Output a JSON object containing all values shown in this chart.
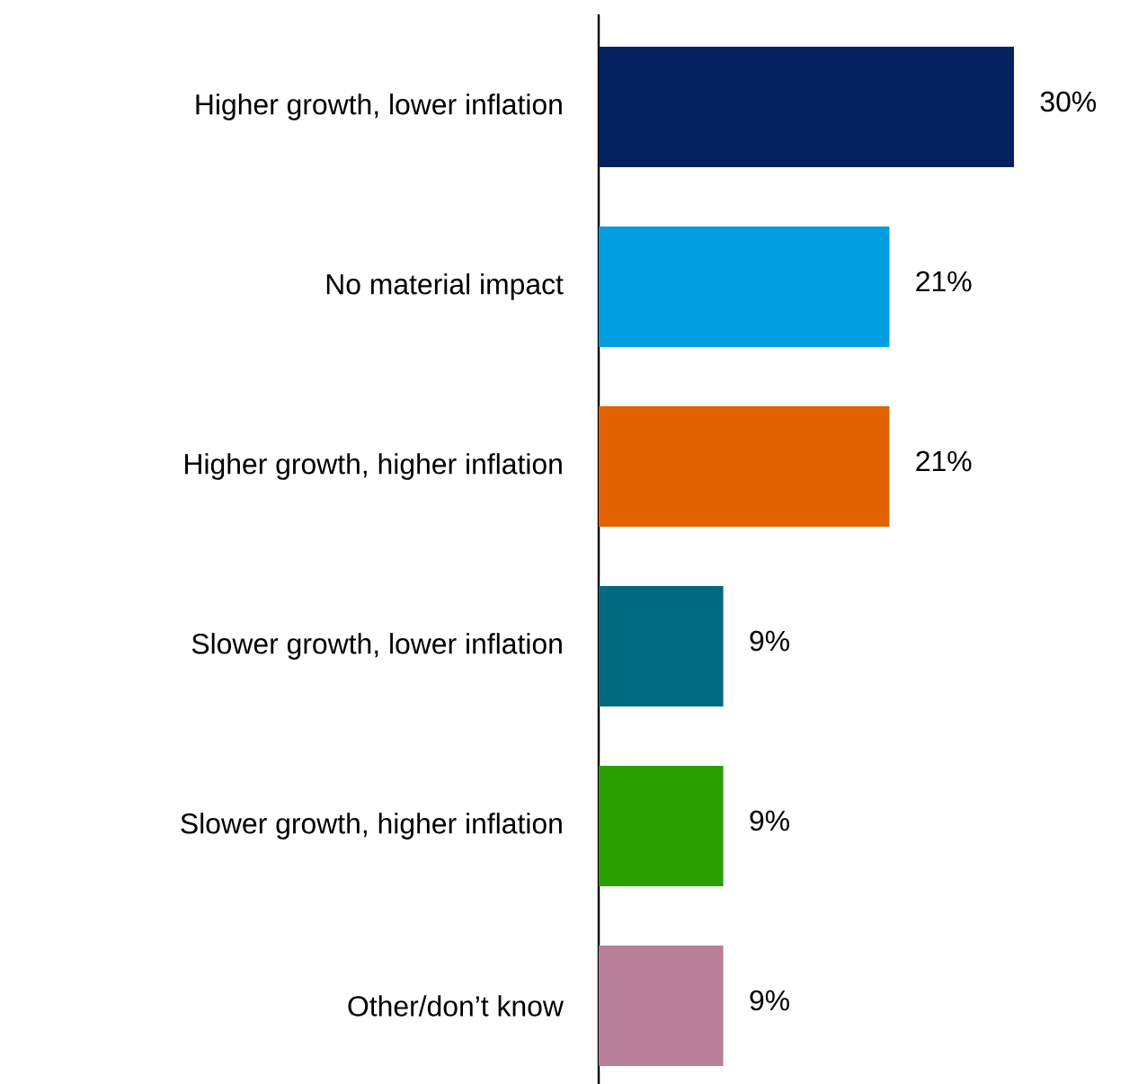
{
  "chart_data": {
    "type": "bar",
    "orientation": "horizontal",
    "categories": [
      "Higher growth, lower inflation",
      "No material impact",
      "Higher growth, higher inflation",
      "Slower growth, lower inflation",
      "Slower growth, higher inflation",
      "Other/don’t know"
    ],
    "values": [
      30,
      21,
      21,
      9,
      9,
      9
    ],
    "colors": [
      "#03215f",
      "#009de0",
      "#e36200",
      "#006a80",
      "#2aa000",
      "#b97f98"
    ],
    "value_labels": [
      "30%",
      "21%",
      "21%",
      "9%",
      "9%",
      "9%"
    ]
  }
}
